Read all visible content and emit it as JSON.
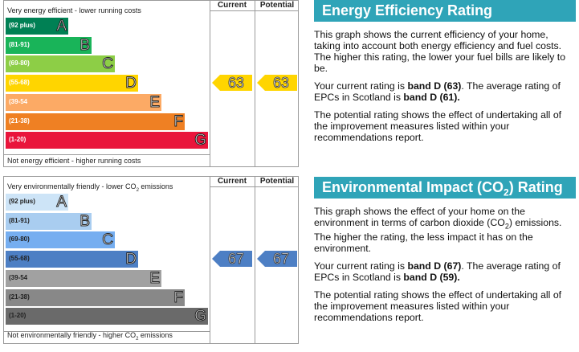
{
  "energy_chart": {
    "top_label": "Very energy efficient - lower running costs",
    "bottom_label": "Not energy efficient - higher running costs",
    "col_current": "Current",
    "col_potential": "Potential",
    "colors": [
      "#008054",
      "#19b459",
      "#8dce46",
      "#ffd500",
      "#fcaa65",
      "#ef8023",
      "#e9153b"
    ]
  },
  "impact_chart": {
    "top_label_pre": "Very environmentally friendly - lower CO",
    "top_label_sub": "2",
    "top_label_post": " emissions",
    "bottom_label_pre": "Not environmentally friendly - higher CO",
    "bottom_label_sub": "2",
    "bottom_label_post": " emissions",
    "col_current": "Current",
    "col_potential": "Potential",
    "colors": [
      "#cde4f7",
      "#a9cdf0",
      "#76aef0",
      "#4d7fc4",
      "#a1a1a1",
      "#888888",
      "#6a6a6a"
    ]
  },
  "chart_data": [
    {
      "type": "bar",
      "categories": [
        "A",
        "B",
        "C",
        "D",
        "E",
        "F",
        "G"
      ],
      "ranges": [
        "(92 plus)",
        "(81-91)",
        "(69-80)",
        "(55-68)",
        "(39-54",
        "(21-38)",
        "(1-20)"
      ],
      "current": 63,
      "potential": 63,
      "current_band": "D",
      "potential_band": "D"
    },
    {
      "type": "bar",
      "categories": [
        "A",
        "B",
        "C",
        "D",
        "E",
        "F",
        "G"
      ],
      "ranges": [
        "(92 plus)",
        "(81-91)",
        "(69-80)",
        "(55-68)",
        "(39-54",
        "(21-38)",
        "(1-20)"
      ],
      "current": 67,
      "potential": 67,
      "current_band": "D",
      "potential_band": "D"
    }
  ],
  "energy_panel": {
    "title": "Energy Efficiency Rating",
    "p1": "This graph shows the current efficiency of your home, taking into account both energy efficiency and fuel costs. The higher this rating, the lower your fuel bills are likely to be.",
    "p2_a": "Your current rating is ",
    "p2_b": "band D (63)",
    "p2_c": ". The average rating of EPCs in Scotland is ",
    "p2_d": "band D (61).",
    "p3": "The potential rating shows the effect of undertaking all of the improvement measures listed within your recommendations report."
  },
  "impact_panel": {
    "title_pre": "Environmental Impact (CO",
    "title_sub": "2",
    "title_post": ") Rating",
    "p1_a": "This graph shows the effect of your home on the environment in terms of carbon dioxide (CO",
    "p1_sub": "2",
    "p1_b": ") emissions. The higher the rating, the less impact it has on the environment.",
    "p2_a": "Your current rating is ",
    "p2_b": "band D (67)",
    "p2_c": ". The average rating of EPCs in Scotland is ",
    "p2_d": "band D (59).",
    "p3": "The potential rating shows the effect of undertaking all of the improvement measures listed within your recommendations report."
  }
}
